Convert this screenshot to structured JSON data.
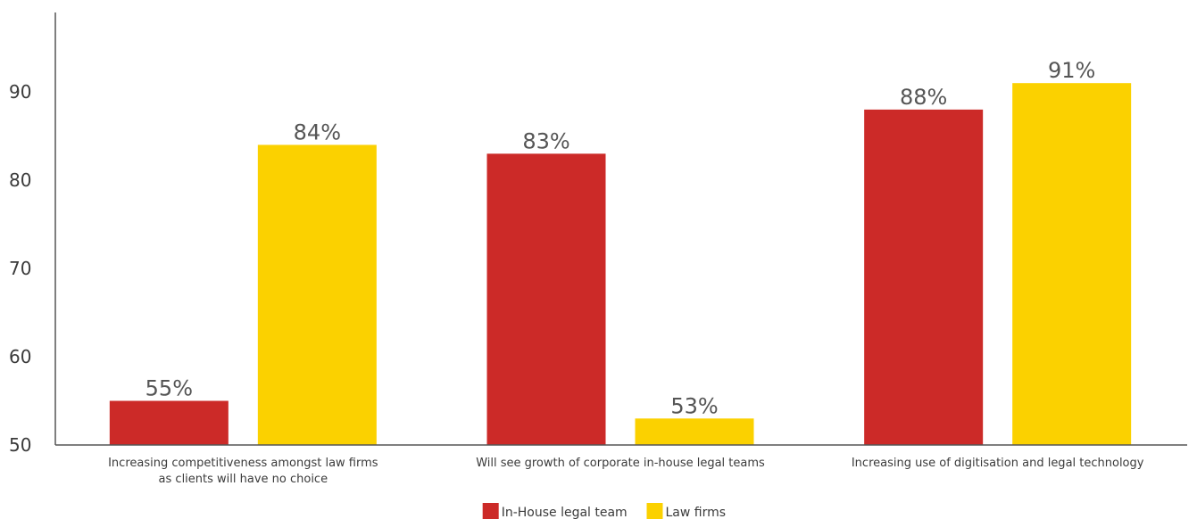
{
  "chart_data": {
    "type": "bar",
    "categories": [
      [
        "Increasing competitiveness amongst law firms",
        "as clients will have no choice"
      ],
      [
        "Will see growth of corporate in-house legal teams"
      ],
      [
        "Increasing use of digitisation and legal technology"
      ]
    ],
    "series": [
      {
        "name": "In-House legal team",
        "color": "#cc2a28",
        "values": [
          55,
          83,
          88
        ],
        "labels": [
          "55%",
          "83%",
          "88%"
        ]
      },
      {
        "name": "Law firms",
        "color": "#fbd100",
        "values": [
          84,
          53,
          91
        ],
        "labels": [
          "84%",
          "53%",
          "91%"
        ]
      }
    ],
    "y_ticks": [
      50,
      60,
      70,
      80,
      90
    ],
    "y_tick_labels": [
      "50",
      "60",
      "70",
      "80",
      "90"
    ],
    "ylim": [
      50,
      99
    ],
    "grid": false,
    "legend_position": "bottom-center"
  }
}
